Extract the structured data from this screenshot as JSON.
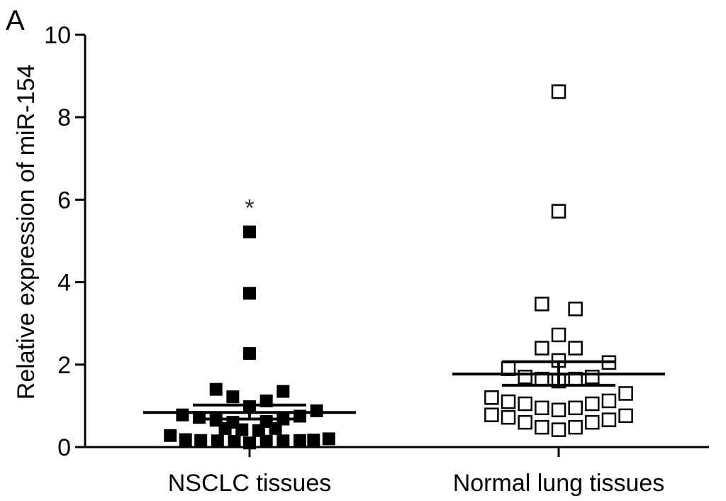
{
  "panel_label": "A",
  "chart_data": {
    "type": "scatter",
    "ylabel": "Relative expression of miR-154",
    "ylim": [
      0,
      10
    ],
    "yticks": [
      0,
      2,
      4,
      6,
      8,
      10
    ],
    "categories": [
      "NSCLC tissues",
      "Normal lung tissues"
    ],
    "annotation": {
      "text": "*",
      "category": "NSCLC tissues",
      "y": 5.95
    },
    "series": [
      {
        "category": "NSCLC tissues",
        "marker": "filled-square",
        "color": "#000000",
        "mean": 0.84,
        "sem_upper": 1.02,
        "sem_lower": 0.68,
        "points": [
          {
            "dx": 0,
            "y": 5.22
          },
          {
            "dx": 0,
            "y": 3.73
          },
          {
            "dx": 0,
            "y": 2.27
          },
          {
            "dx": -1.1,
            "y": 1.4
          },
          {
            "dx": -0.55,
            "y": 1.22
          },
          {
            "dx": 0.55,
            "y": 1.12
          },
          {
            "dx": 1.1,
            "y": 1.35
          },
          {
            "dx": 0,
            "y": 0.98
          },
          {
            "dx": -2.2,
            "y": 0.78
          },
          {
            "dx": -1.65,
            "y": 0.72
          },
          {
            "dx": -1.1,
            "y": 0.65
          },
          {
            "dx": -0.55,
            "y": 0.6
          },
          {
            "dx": 0.55,
            "y": 0.62
          },
          {
            "dx": 1.1,
            "y": 0.68
          },
          {
            "dx": 1.65,
            "y": 0.75
          },
          {
            "dx": 2.2,
            "y": 0.88
          },
          {
            "dx": -0.8,
            "y": 0.45
          },
          {
            "dx": -0.25,
            "y": 0.42
          },
          {
            "dx": 0.3,
            "y": 0.4
          },
          {
            "dx": 0.85,
            "y": 0.45
          },
          {
            "dx": -2.6,
            "y": 0.28
          },
          {
            "dx": -2.1,
            "y": 0.18
          },
          {
            "dx": -1.6,
            "y": 0.16
          },
          {
            "dx": -1.05,
            "y": 0.15
          },
          {
            "dx": -0.5,
            "y": 0.14
          },
          {
            "dx": 0,
            "y": 0.1
          },
          {
            "dx": 0.55,
            "y": 0.14
          },
          {
            "dx": 1.1,
            "y": 0.15
          },
          {
            "dx": 1.65,
            "y": 0.16
          },
          {
            "dx": 2.1,
            "y": 0.17
          },
          {
            "dx": 2.6,
            "y": 0.2
          }
        ]
      },
      {
        "category": "Normal lung tissues",
        "marker": "open-square",
        "color": "#000000",
        "mean": 1.77,
        "sem_upper": 2.07,
        "sem_lower": 1.5,
        "points": [
          {
            "dx": 0,
            "y": 8.62
          },
          {
            "dx": 0,
            "y": 5.72
          },
          {
            "dx": -0.55,
            "y": 3.47
          },
          {
            "dx": 0.55,
            "y": 3.35
          },
          {
            "dx": 0,
            "y": 2.72
          },
          {
            "dx": -0.55,
            "y": 2.4
          },
          {
            "dx": 0.55,
            "y": 2.4
          },
          {
            "dx": 0,
            "y": 2.1
          },
          {
            "dx": -1.65,
            "y": 1.9
          },
          {
            "dx": 1.65,
            "y": 2.05
          },
          {
            "dx": -1.1,
            "y": 1.7
          },
          {
            "dx": -0.55,
            "y": 1.65
          },
          {
            "dx": 0,
            "y": 1.6
          },
          {
            "dx": 0.55,
            "y": 1.65
          },
          {
            "dx": 1.1,
            "y": 1.7
          },
          {
            "dx": -2.2,
            "y": 1.2
          },
          {
            "dx": -1.65,
            "y": 1.1
          },
          {
            "dx": -1.1,
            "y": 1.05
          },
          {
            "dx": -0.55,
            "y": 0.95
          },
          {
            "dx": 0,
            "y": 0.9
          },
          {
            "dx": 0.55,
            "y": 0.95
          },
          {
            "dx": 1.1,
            "y": 1.05
          },
          {
            "dx": 1.65,
            "y": 1.12
          },
          {
            "dx": 2.2,
            "y": 1.3
          },
          {
            "dx": -2.2,
            "y": 0.78
          },
          {
            "dx": -1.65,
            "y": 0.72
          },
          {
            "dx": -1.1,
            "y": 0.6
          },
          {
            "dx": -0.55,
            "y": 0.48
          },
          {
            "dx": 0,
            "y": 0.42
          },
          {
            "dx": 0.55,
            "y": 0.48
          },
          {
            "dx": 1.1,
            "y": 0.6
          },
          {
            "dx": 1.65,
            "y": 0.66
          },
          {
            "dx": 2.2,
            "y": 0.76
          }
        ]
      }
    ]
  }
}
